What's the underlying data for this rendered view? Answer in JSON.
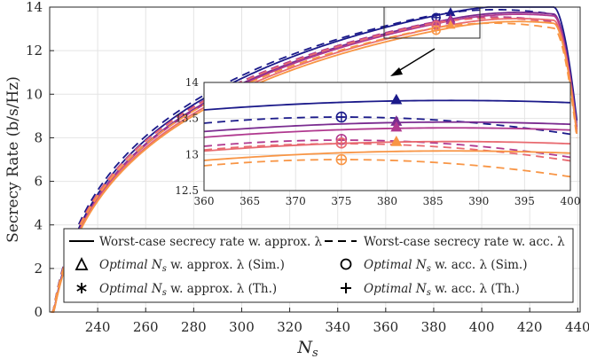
{
  "chart_data": {
    "type": "line",
    "xlabel": "N",
    "xlabel_sub": "s",
    "ylabel": "Secrecy Rate (b/s/Hz)",
    "xlim": [
      220,
      441
    ],
    "ylim": [
      0,
      14
    ],
    "xticks": [
      "240",
      "260",
      "280",
      "300",
      "320",
      "340",
      "360",
      "380",
      "400",
      "420",
      "440"
    ],
    "yticks": [
      "0",
      "2",
      "4",
      "6",
      "8",
      "10",
      "12",
      "14"
    ],
    "grid": true,
    "series": [
      {
        "name": "Worst-case secrecy rate w. approx. λ (set 1)",
        "style": "solid",
        "color": "#1b1a8a",
        "peak_x": 387,
        "peak": 13.75,
        "end": 8.4
      },
      {
        "name": "Worst-case secrecy rate w. acc. λ (set 1)",
        "style": "dashed",
        "color": "#1b1a8a",
        "peak_x": 375,
        "peak": 13.52,
        "end": 8.2
      },
      {
        "name": "Worst-case secrecy rate w. approx. λ (set 2)",
        "style": "solid",
        "color": "#7a2c90",
        "peak_x": 387,
        "peak": 13.45,
        "end": 8.1
      },
      {
        "name": "Worst-case secrecy rate w. approx. λ (set 3)",
        "style": "solid",
        "color": "#b0398f",
        "peak_x": 387,
        "peak": 13.37,
        "end": 8.0
      },
      {
        "name": "Worst-case secrecy rate w. acc. λ (set 2)",
        "style": "dashed",
        "color": "#b0398f",
        "peak_x": 375,
        "peak": 13.2,
        "end": 7.9
      },
      {
        "name": "Worst-case secrecy rate w. approx. λ (set 4)",
        "style": "solid",
        "color": "#e86a70",
        "peak_x": 387,
        "peak": 13.18,
        "end": 7.9
      },
      {
        "name": "Worst-case secrecy rate w. acc. λ (set 3)",
        "style": "dashed",
        "color": "#e86a70",
        "peak_x": 375,
        "peak": 13.15,
        "end": 7.8
      },
      {
        "name": "Worst-case secrecy rate w. approx. λ (set 5)",
        "style": "solid",
        "color": "#f89545",
        "peak_x": 387,
        "peak": 13.05,
        "end": 7.8
      },
      {
        "name": "Worst-case secrecy rate w. acc. λ (set 4)",
        "style": "dashed",
        "color": "#f89545",
        "peak_x": 375,
        "peak": 12.93,
        "end": 7.6
      }
    ],
    "markers": [
      {
        "kind": "triangle",
        "x": 381,
        "y": 13.76,
        "color": "#1b1a8a"
      },
      {
        "kind": "triangle",
        "x": 381,
        "y": 13.46,
        "color": "#7a2c90"
      },
      {
        "kind": "triangle",
        "x": 381,
        "y": 13.38,
        "color": "#b0398f"
      },
      {
        "kind": "triangle",
        "x": 381,
        "y": 13.18,
        "color": "#f89545"
      },
      {
        "kind": "circle",
        "x": 375,
        "y": 13.52,
        "color": "#1b1a8a"
      },
      {
        "kind": "circle",
        "x": 375,
        "y": 13.21,
        "color": "#b0398f"
      },
      {
        "kind": "circle",
        "x": 375,
        "y": 13.16,
        "color": "#e86a70"
      },
      {
        "kind": "circle",
        "x": 375,
        "y": 12.93,
        "color": "#f89545"
      }
    ],
    "inset": {
      "xlim": [
        360,
        400
      ],
      "ylim": [
        12.5,
        14
      ],
      "xticks": [
        "360",
        "365",
        "370",
        "375",
        "380",
        "385",
        "390",
        "395",
        "400"
      ],
      "yticks": [
        "12.5",
        "13",
        "13.5",
        "14"
      ],
      "grid": true
    },
    "legend": {
      "placement": "bottom-center",
      "items": [
        {
          "label": "Worst-case secrecy rate w. approx. λ",
          "symbol": "solid-line"
        },
        {
          "label": "Worst-case secrecy rate w. acc. λ",
          "symbol": "dashed-line"
        },
        {
          "label": "Optimal N",
          "sub": "s",
          "rest": " w. approx. λ (Sim.)",
          "symbol": "triangle"
        },
        {
          "label": "Optimal N",
          "sub": "s",
          "rest": " w. acc. λ (Sim.)",
          "symbol": "circle"
        },
        {
          "label": "Optimal N",
          "sub": "s",
          "rest": " w. approx. λ (Th.)",
          "symbol": "asterisk"
        },
        {
          "label": "Optimal N",
          "sub": "s",
          "rest": " w. acc. λ (Th.)",
          "symbol": "plus"
        }
      ]
    }
  }
}
